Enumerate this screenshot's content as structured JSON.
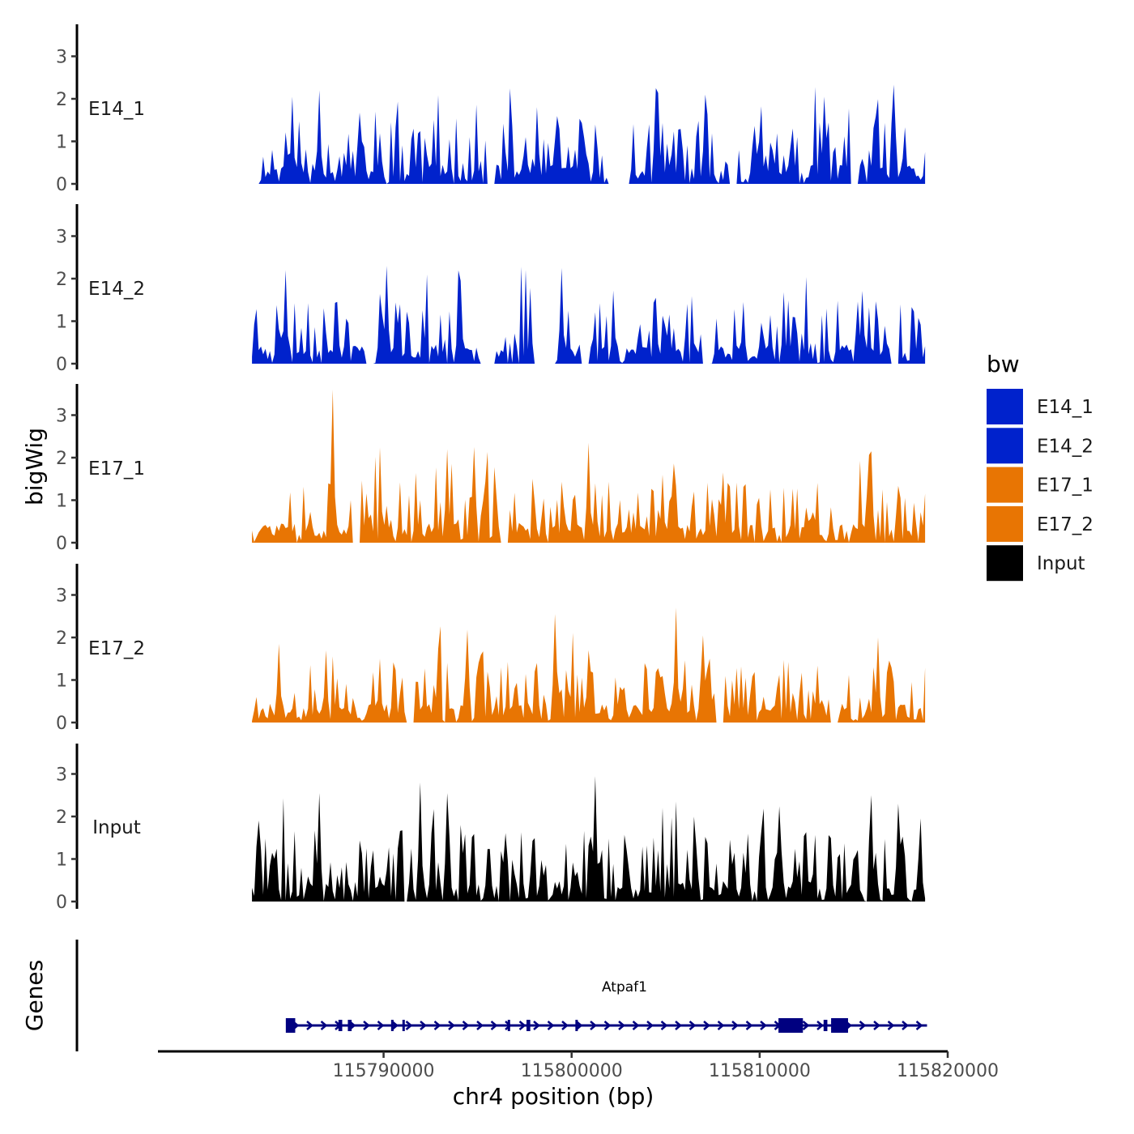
{
  "chart_data": {
    "type": "area",
    "layout": "stacked-tracks",
    "ylabel": "bigWig",
    "xlabel": "chr4 position (bp)",
    "xlim": [
      115778000,
      115820000
    ],
    "data_range": [
      115783000,
      115818800
    ],
    "ylim": [
      0,
      3.7
    ],
    "y_ticks": [
      0,
      1,
      2,
      3
    ],
    "x_ticks": [
      115790000,
      115800000,
      115810000,
      115820000
    ],
    "x_tick_labels": [
      "115790000",
      "115800000",
      "115810000",
      "115820000"
    ],
    "legend": {
      "title": "bw",
      "position": "right",
      "entries": [
        {
          "label": "E14_1",
          "color": "#0022CC"
        },
        {
          "label": "E14_2",
          "color": "#0022CC"
        },
        {
          "label": "E17_1",
          "color": "#E87503"
        },
        {
          "label": "E17_2",
          "color": "#E87503"
        },
        {
          "label": "Input",
          "color": "#000000"
        }
      ]
    },
    "series": [
      {
        "name": "E14_1",
        "color": "#0022CC",
        "seed": 11,
        "amplitude": 1.25,
        "peaks": [
          [
            0.06,
            2.05
          ],
          [
            0.1,
            2.2
          ],
          [
            0.24,
            1.3
          ],
          [
            0.6,
            2.25
          ],
          [
            0.85,
            2.05
          ],
          [
            0.9,
            1.45
          ]
        ],
        "gaps": [
          [
            0.0,
            0.01
          ],
          [
            0.35,
            0.36
          ],
          [
            0.53,
            0.56
          ],
          [
            0.71,
            0.72
          ],
          [
            0.89,
            0.9
          ]
        ]
      },
      {
        "name": "E14_2",
        "color": "#0022CC",
        "seed": 23,
        "amplitude": 1.2,
        "peaks": [
          [
            0.05,
            2.2
          ],
          [
            0.2,
            2.3
          ],
          [
            0.31,
            1.95
          ],
          [
            0.46,
            2.25
          ],
          [
            0.6,
            1.55
          ],
          [
            0.73,
            1.45
          ]
        ],
        "gaps": [
          [
            0.17,
            0.18
          ],
          [
            0.34,
            0.36
          ],
          [
            0.42,
            0.45
          ],
          [
            0.49,
            0.5
          ],
          [
            0.67,
            0.68
          ],
          [
            0.95,
            0.96
          ]
        ]
      },
      {
        "name": "E17_1",
        "color": "#E87503",
        "seed": 37,
        "amplitude": 1.15,
        "peaks": [
          [
            0.12,
            3.6
          ],
          [
            0.29,
            2.2
          ],
          [
            0.33,
            2.25
          ],
          [
            0.5,
            2.35
          ],
          [
            0.61,
            1.6
          ],
          [
            0.92,
            2.15
          ]
        ],
        "gaps": [
          [
            0.15,
            0.16
          ],
          [
            0.37,
            0.38
          ]
        ]
      },
      {
        "name": "E17_2",
        "color": "#E87503",
        "seed": 53,
        "amplitude": 1.2,
        "peaks": [
          [
            0.04,
            1.85
          ],
          [
            0.11,
            1.7
          ],
          [
            0.19,
            1.5
          ],
          [
            0.45,
            2.55
          ],
          [
            0.5,
            1.7
          ],
          [
            0.63,
            2.7
          ],
          [
            0.67,
            2.05
          ],
          [
            0.93,
            2.0
          ]
        ],
        "gaps": [
          [
            0.23,
            0.24
          ],
          [
            0.69,
            0.7
          ],
          [
            0.86,
            0.87
          ]
        ]
      },
      {
        "name": "Input",
        "color": "#000000",
        "seed": 71,
        "amplitude": 1.4,
        "peaks": [
          [
            0.1,
            2.55
          ],
          [
            0.25,
            2.8
          ],
          [
            0.29,
            2.55
          ],
          [
            0.51,
            2.95
          ],
          [
            0.92,
            2.5
          ],
          [
            0.96,
            2.3
          ]
        ],
        "gaps": [
          [
            0.225,
            0.229
          ]
        ]
      }
    ],
    "genes_track": {
      "label": "Genes",
      "gene": {
        "name": "Atpaf1",
        "start": 115785000,
        "end": 115818900,
        "exons": [
          [
            115784800,
            115785300
          ],
          [
            115787600,
            115787800
          ],
          [
            115788100,
            115788300
          ],
          [
            115790400,
            115790500
          ],
          [
            115791000,
            115791100
          ],
          [
            115796600,
            115796700
          ],
          [
            115797600,
            115797800
          ],
          [
            115800200,
            115800300
          ],
          [
            115811000,
            115812300
          ],
          [
            115813400,
            115813600
          ],
          [
            115813800,
            115814700
          ]
        ]
      }
    }
  }
}
